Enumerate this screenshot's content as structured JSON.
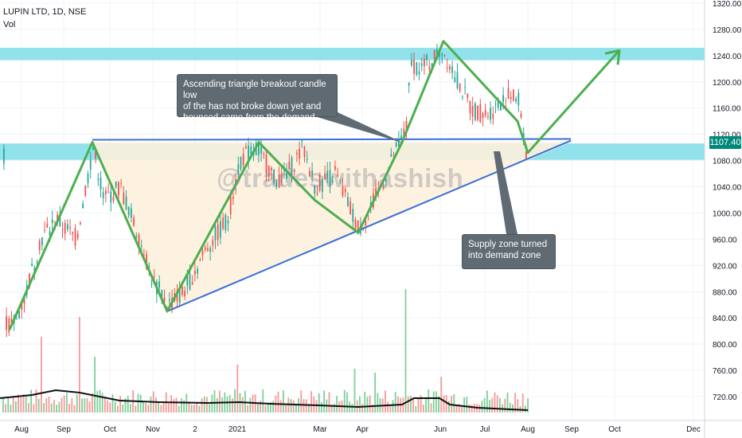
{
  "header": {
    "symbol_line": "LUPIN LTD, 1D, NSE",
    "volume_label": "Vol"
  },
  "watermark": "@tradeswithashish",
  "annotations": {
    "breakout_note": [
      "Ascending triangle breakout candle low",
      "of the has not broke down yet and",
      "bounced came from the demand zone"
    ],
    "zone_note": [
      "Supply zone turned",
      "into demand zone"
    ]
  },
  "last_price_label": "1107.40",
  "colors": {
    "zone": "#7fdde8",
    "triangle_fill": "#fdf1dd",
    "trendline": "#3a6fd8",
    "pattern_line": "#4caf50",
    "up_candle": "#26a69a",
    "down_candle": "#ef5350",
    "note_bg": "#5f6a72"
  },
  "chart_data": {
    "type": "candlestick",
    "price_axis_ticks": [
      "1320.00",
      "1280.00",
      "1240.00",
      "1200.00",
      "1160.00",
      "1120.00",
      "1080.00",
      "1040.00",
      "1000.00",
      "960.00",
      "920.00",
      "880.00",
      "840.00",
      "800.00",
      "760.00",
      "720.00"
    ],
    "time_axis_ticks": [
      "Aug",
      "Sep",
      "Oct",
      "Nov",
      "2",
      "2021",
      "Mar",
      "Apr",
      "Jun",
      "Jul",
      "Aug",
      "Sep",
      "Oct",
      "Dec"
    ],
    "ylim": [
      700,
      1330
    ],
    "supply_demand_zones": [
      {
        "low": 1233,
        "high": 1252
      },
      {
        "low": 1081,
        "high": 1106
      }
    ],
    "ascending_triangle": {
      "resistance": 1107,
      "support_start": {
        "date": "Nov",
        "price": 850
      },
      "support_end": {
        "date": "Aug",
        "price": 1106
      }
    },
    "price_path": [
      {
        "date": "Aug",
        "price": 822
      },
      {
        "date": "Sep",
        "price": 1108
      },
      {
        "date": "Nov",
        "price": 850
      },
      {
        "date": "2021",
        "price": 1106
      },
      {
        "date": "Mar",
        "price": 1020
      },
      {
        "date": "Apr",
        "price": 970
      },
      {
        "date": "Jun",
        "price": 1262
      },
      {
        "date": "Jul",
        "price": 1160
      },
      {
        "date": "Aug",
        "price": 1090
      }
    ],
    "projection": {
      "to": "Sep",
      "target": 1248
    },
    "last_price": 1107.4
  }
}
